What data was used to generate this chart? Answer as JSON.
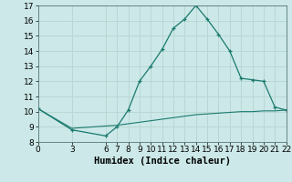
{
  "title": "",
  "xlabel": "Humidex (Indice chaleur)",
  "ylabel": "",
  "background_color": "#cce8e8",
  "line_color": "#1a7a6e",
  "xlim": [
    0,
    22
  ],
  "ylim": [
    8,
    17
  ],
  "yticks": [
    8,
    9,
    10,
    11,
    12,
    13,
    14,
    15,
    16,
    17
  ],
  "xticks": [
    0,
    3,
    6,
    7,
    8,
    9,
    10,
    11,
    12,
    13,
    14,
    15,
    16,
    17,
    18,
    19,
    20,
    21,
    22
  ],
  "curve1_x": [
    0,
    3,
    6,
    7,
    8,
    9,
    10,
    11,
    12,
    13,
    14,
    15,
    16,
    17,
    18,
    19,
    20,
    21,
    22
  ],
  "curve1_y": [
    10.2,
    8.8,
    8.4,
    9.0,
    10.1,
    12.0,
    13.0,
    14.1,
    15.5,
    16.1,
    17.0,
    16.1,
    15.1,
    14.0,
    12.2,
    12.1,
    12.0,
    10.3,
    10.1
  ],
  "curve2_x": [
    0,
    3,
    6,
    7,
    8,
    9,
    10,
    11,
    12,
    13,
    14,
    15,
    16,
    17,
    18,
    19,
    20,
    21,
    22
  ],
  "curve2_y": [
    10.2,
    8.9,
    9.05,
    9.1,
    9.2,
    9.3,
    9.4,
    9.5,
    9.6,
    9.7,
    9.8,
    9.85,
    9.9,
    9.95,
    10.0,
    10.0,
    10.05,
    10.05,
    10.1
  ],
  "grid_color": "#b8d8d4",
  "tick_fontsize": 6.5,
  "xlabel_fontsize": 7.5
}
